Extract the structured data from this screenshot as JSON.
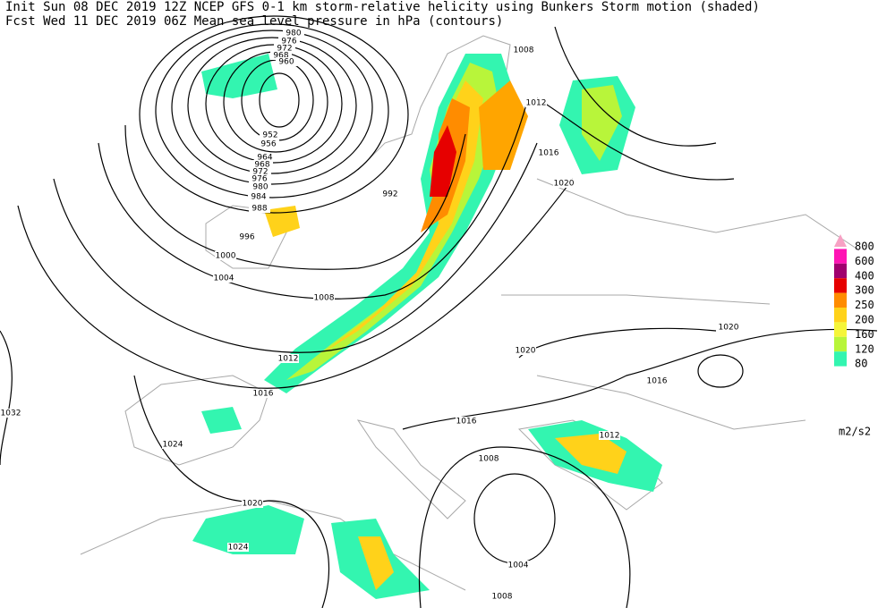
{
  "header": {
    "init": "Init  Sun 08 DEC 2019 12Z  NCEP GFS 0-1 km storm-relative helicity using Bunkers Storm motion (shaded)",
    "forecast": "Fcst Wed 11 DEC 2019 06Z  Mean sea level pressure in hPa (contours)"
  },
  "legend": {
    "unit": "m2/s2",
    "levels": [
      {
        "label": "800",
        "color": "#f7a1c4"
      },
      {
        "label": "600",
        "color": "#ff14b4"
      },
      {
        "label": "400",
        "color": "#a0006e"
      },
      {
        "label": "300",
        "color": "#e60000"
      },
      {
        "label": "250",
        "color": "#ff8c00"
      },
      {
        "label": "200",
        "color": "#ffd21a"
      },
      {
        "label": "160",
        "color": "#f5f53a"
      },
      {
        "label": "120",
        "color": "#b8f53a"
      },
      {
        "label": "80",
        "color": "#33f5b0"
      }
    ]
  },
  "contour_labels": [
    "980",
    "976",
    "972",
    "968",
    "960",
    "952",
    "956",
    "964",
    "968",
    "972",
    "976",
    "980",
    "984",
    "988",
    "992",
    "996",
    "1000",
    "1004",
    "1008",
    "1012",
    "1016",
    "1032",
    "1024",
    "1020",
    "1024",
    "1008",
    "1012",
    "1016",
    "1020",
    "1020",
    "1020",
    "1016",
    "1016",
    "1008",
    "1012",
    "1004",
    "1008"
  ]
}
